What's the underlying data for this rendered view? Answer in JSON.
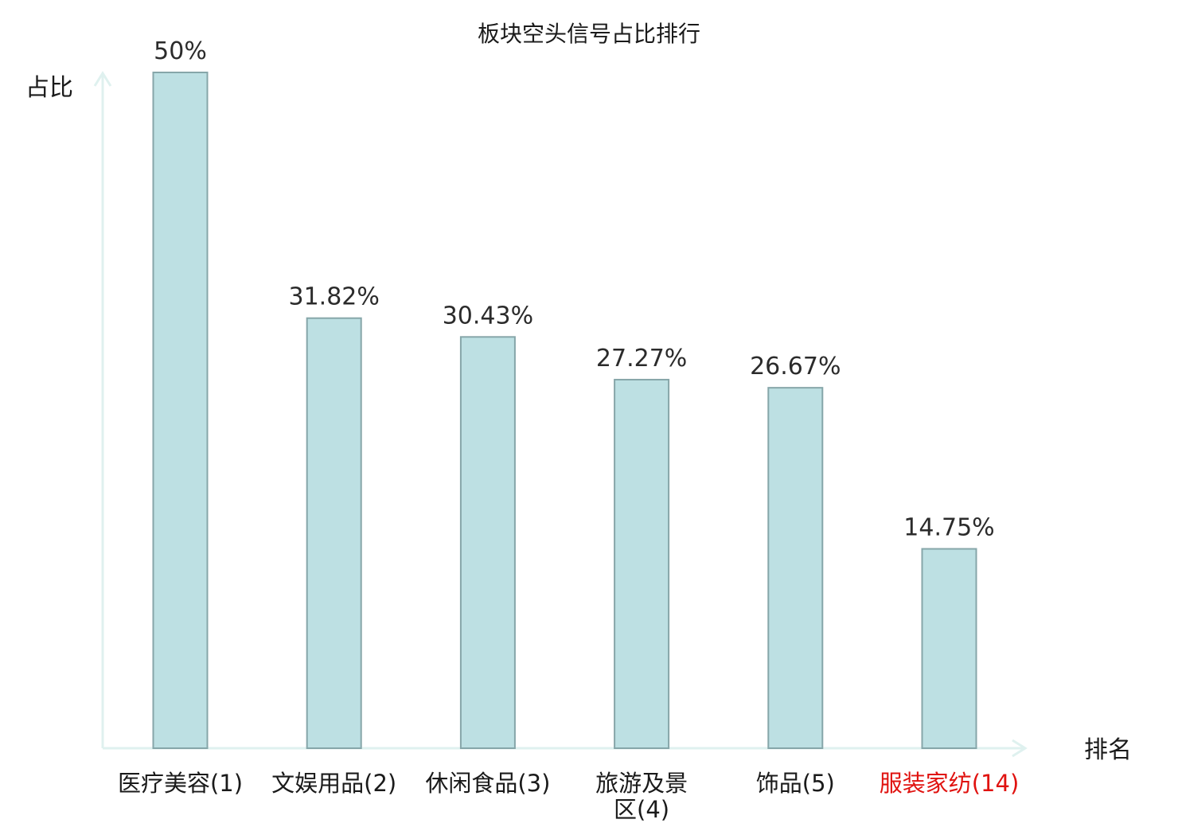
{
  "chart_data": {
    "type": "bar",
    "title": "板块空头信号占比排行",
    "ylabel": "占比",
    "xlabel": "排名",
    "ylim": [
      0,
      50
    ],
    "grid": false,
    "categories": [
      "医疗美容(1)",
      "文娱用品(2)",
      "休闲食品(3)",
      "旅游及景区(4)",
      "饰品(5)",
      "服装家纺(14)"
    ],
    "category_lines": [
      [
        "医疗美容(1)"
      ],
      [
        "文娱用品(2)"
      ],
      [
        "休闲食品(3)"
      ],
      [
        "旅游及景",
        "区(4)"
      ],
      [
        "饰品(5)"
      ],
      [
        "服装家纺(14)"
      ]
    ],
    "values": [
      50,
      31.82,
      30.43,
      27.27,
      26.67,
      14.75
    ],
    "value_labels": [
      "50%",
      "31.82%",
      "30.43%",
      "27.27%",
      "26.67%",
      "14.75%"
    ],
    "highlight_index": 5,
    "colors": {
      "bar_fill": "#bde0e3",
      "bar_stroke": "#86a6a9",
      "axis": "#dff1ef",
      "label_default": "#1a1a1a",
      "label_highlight": "#e0120f"
    }
  }
}
